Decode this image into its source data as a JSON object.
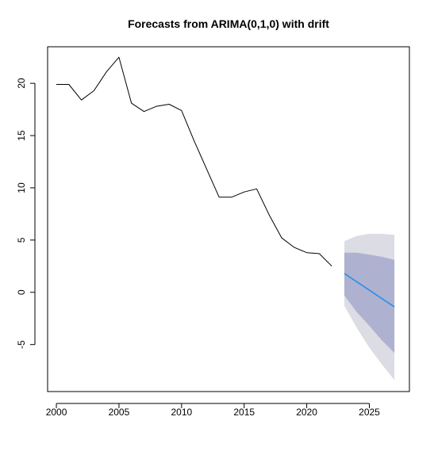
{
  "chart_data": {
    "type": "line",
    "title": "Forecasts from ARIMA(0,1,0) with drift",
    "xlabel": "",
    "ylabel": "",
    "xlim": [
      1999.3,
      2028.2
    ],
    "ylim": [
      -9.5,
      23.5
    ],
    "x_ticks": [
      2000,
      2005,
      2010,
      2015,
      2020,
      2025
    ],
    "y_ticks": [
      -5,
      0,
      5,
      10,
      15,
      20
    ],
    "x_tick_labels": [
      "2000",
      "2005",
      "2010",
      "2015",
      "2020",
      "2025"
    ],
    "y_tick_labels": [
      "-5",
      "0",
      "5",
      "10",
      "15",
      "20"
    ],
    "grid": false,
    "legend": "none",
    "series": [
      {
        "role": "observed",
        "color": "#000000",
        "x": [
          2000,
          2001,
          2002,
          2003,
          2004,
          2005,
          2006,
          2007,
          2008,
          2009,
          2010,
          2011,
          2012,
          2013,
          2014,
          2015,
          2016,
          2017,
          2018,
          2019,
          2020,
          2021,
          2022
        ],
        "values": [
          19.9,
          19.9,
          18.4,
          19.3,
          21.1,
          22.5,
          18.1,
          17.3,
          17.8,
          18.0,
          17.4,
          14.5,
          11.8,
          9.1,
          9.1,
          9.6,
          9.9,
          7.4,
          5.2,
          4.3,
          3.8,
          3.7,
          2.5
        ]
      },
      {
        "role": "forecast",
        "color": "#2a8fe8",
        "x": [
          2023,
          2024,
          2025,
          2026,
          2027
        ],
        "values": [
          1.8,
          1.0,
          0.2,
          -0.6,
          -1.4
        ]
      }
    ],
    "intervals": [
      {
        "level": "95%",
        "color": "#dcdce4",
        "x": [
          2023,
          2024,
          2025,
          2026,
          2027
        ],
        "lower": [
          -1.3,
          -3.4,
          -5.3,
          -6.9,
          -8.4
        ],
        "upper": [
          4.9,
          5.4,
          5.6,
          5.6,
          5.5
        ]
      },
      {
        "level": "80%",
        "color": "#aeb1d0",
        "x": [
          2023,
          2024,
          2025,
          2026,
          2027
        ],
        "lower": [
          -0.3,
          -1.9,
          -3.2,
          -4.6,
          -5.8
        ],
        "upper": [
          3.8,
          3.8,
          3.6,
          3.4,
          3.1
        ]
      }
    ]
  }
}
